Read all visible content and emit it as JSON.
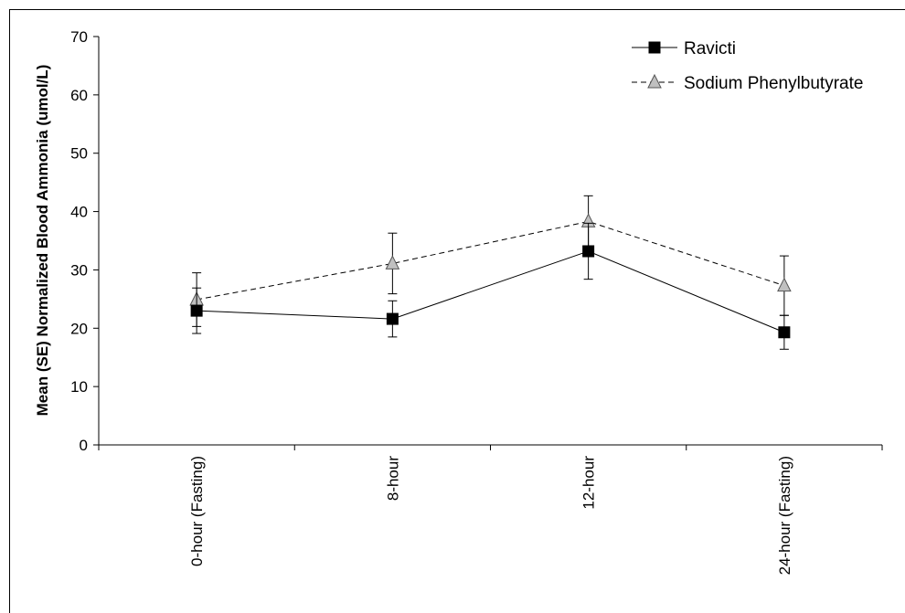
{
  "chart_data": {
    "type": "line",
    "categories": [
      "0-hour (Fasting)",
      "8-hour",
      "12-hour",
      "24-hour (Fasting)"
    ],
    "ylabel": "Mean (SE) Normalized Blood Ammonia (umol/L)",
    "xlabel": "",
    "title": "",
    "ylim": [
      0,
      70
    ],
    "yticks": [
      "0",
      "10",
      "20",
      "30",
      "40",
      "50",
      "60",
      "70"
    ],
    "grid": false,
    "legend_position": "top-right",
    "series": [
      {
        "name": "Ravicti",
        "values": [
          23.0,
          21.6,
          33.2,
          19.3
        ],
        "error": [
          3.9,
          3.1,
          4.8,
          2.9
        ],
        "line_style": "solid",
        "marker": "square",
        "marker_color": "#000000",
        "line_color": "#000000"
      },
      {
        "name": "Sodium Phenylbutyrate",
        "values": [
          24.9,
          31.1,
          38.3,
          27.3
        ],
        "error": [
          4.6,
          5.2,
          4.4,
          5.1
        ],
        "line_style": "dashed",
        "marker": "triangle",
        "marker_color": "#c0c0c0",
        "line_color": "#000000"
      }
    ]
  }
}
